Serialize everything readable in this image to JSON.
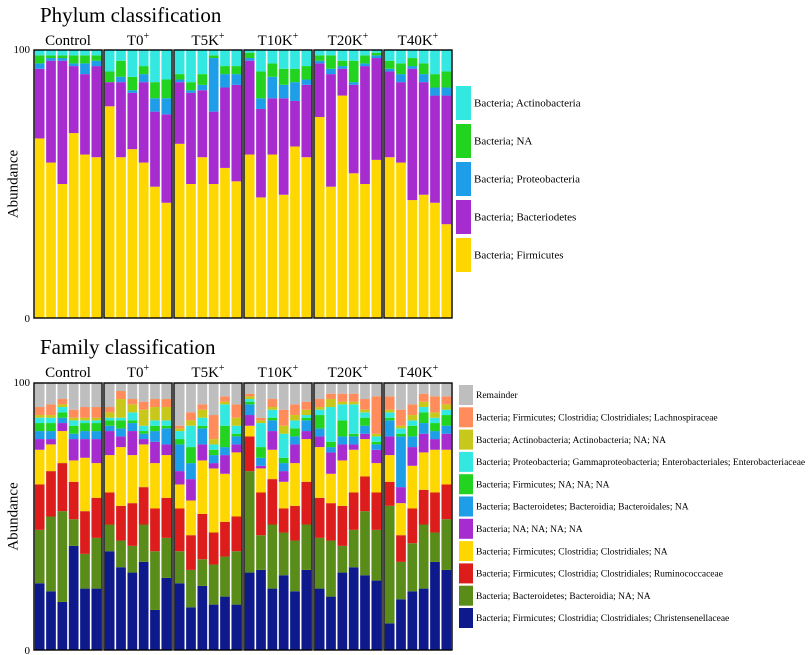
{
  "chart_data": [
    {
      "type": "bar",
      "stacked": true,
      "title": "Phylum classification",
      "ylabel": "Abundance",
      "ylim": [
        0,
        100
      ],
      "yticks": [
        "0",
        "100"
      ],
      "groups": [
        {
          "label": "Control",
          "label_main": "Control",
          "label_sup": ""
        },
        {
          "label": "T0+",
          "label_main": "T0",
          "label_sup": "+"
        },
        {
          "label": "T5K+",
          "label_main": "T5K",
          "label_sup": "+"
        },
        {
          "label": "T10K+",
          "label_main": "T10K",
          "label_sup": "+"
        },
        {
          "label": "T20K+",
          "label_main": "T20K",
          "label_sup": "+"
        },
        {
          "label": "T40K+",
          "label_main": "T40K",
          "label_sup": "+"
        }
      ],
      "bars_per_group": 6,
      "series": [
        {
          "name": "Bacteria; Firmicutes",
          "color": "#FFD700"
        },
        {
          "name": "Bacteria; Bacteriodetes",
          "color": "#A62CD0"
        },
        {
          "name": "Bacteria; Proteobacteria",
          "color": "#1E9EE8"
        },
        {
          "name": "Bacteria; NA",
          "color": "#22D320"
        },
        {
          "name": "Bacteria; Actinobacteria",
          "color": "#33E8E0"
        }
      ],
      "legend_order": [
        "Bacteria; Actinobacteria",
        "Bacteria; NA",
        "Bacteria; Proteobacteria",
        "Bacteria; Bacteriodetes",
        "Bacteria; Firmicutes"
      ],
      "samples": [
        [
          67,
          26,
          2,
          3,
          2
        ],
        [
          58,
          38,
          1,
          1,
          2
        ],
        [
          50,
          46,
          1,
          1,
          2
        ],
        [
          69,
          25,
          1,
          3,
          2
        ],
        [
          61,
          30,
          4,
          3,
          2
        ],
        [
          60,
          34,
          2,
          2,
          2
        ],
        [
          79,
          9,
          0,
          4,
          8
        ],
        [
          60,
          28,
          2,
          6,
          4
        ],
        [
          63,
          21,
          1,
          5,
          10
        ],
        [
          58,
          30,
          3,
          3,
          6
        ],
        [
          49,
          28,
          5,
          6,
          12
        ],
        [
          43,
          33,
          6,
          7,
          11
        ],
        [
          65,
          23,
          1,
          2,
          9
        ],
        [
          50,
          34,
          1,
          3,
          12
        ],
        [
          60,
          25,
          2,
          4,
          9
        ],
        [
          50,
          27,
          20,
          1,
          2
        ],
        [
          56,
          30,
          5,
          3,
          6
        ],
        [
          51,
          36,
          4,
          3,
          6
        ],
        [
          61,
          35,
          1,
          2,
          1
        ],
        [
          45,
          33,
          4,
          10,
          8
        ],
        [
          61,
          21,
          8,
          5,
          5
        ],
        [
          46,
          36,
          5,
          6,
          7
        ],
        [
          64,
          17,
          7,
          5,
          7
        ],
        [
          60,
          27,
          2,
          5,
          6
        ],
        [
          75,
          20,
          1,
          2,
          2
        ],
        [
          49,
          42,
          2,
          5,
          2
        ],
        [
          83,
          10,
          1,
          2,
          4
        ],
        [
          54,
          33,
          1,
          8,
          4
        ],
        [
          50,
          44,
          1,
          3,
          2
        ],
        [
          59,
          38,
          1,
          1,
          1
        ],
        [
          60,
          32,
          1,
          3,
          4
        ],
        [
          58,
          30,
          3,
          4,
          5
        ],
        [
          44,
          49,
          1,
          3,
          3
        ],
        [
          46,
          42,
          3,
          4,
          5
        ],
        [
          43,
          40,
          3,
          5,
          9
        ],
        [
          35,
          48,
          3,
          6,
          8
        ]
      ]
    },
    {
      "type": "bar",
      "stacked": true,
      "title": "Family classification",
      "ylabel": "Abundance",
      "ylim": [
        0,
        100
      ],
      "yticks": [
        "0",
        "100"
      ],
      "groups": [
        {
          "label": "Control",
          "label_main": "Control",
          "label_sup": ""
        },
        {
          "label": "T0+",
          "label_main": "T0",
          "label_sup": "+"
        },
        {
          "label": "T5K+",
          "label_main": "T5K",
          "label_sup": "+"
        },
        {
          "label": "T10K+",
          "label_main": "T10K",
          "label_sup": "+"
        },
        {
          "label": "T20K+",
          "label_main": "T20K",
          "label_sup": "+"
        },
        {
          "label": "T40K+",
          "label_main": "T40K",
          "label_sup": "+"
        }
      ],
      "bars_per_group": 6,
      "series": [
        {
          "name": "Bacteria; Firmicutes; Clostridia; Clostridiales; Christensenellaceae",
          "color": "#0E1A8C"
        },
        {
          "name": "Bacteria; Bacteroidetes; Bacteroidia; NA; NA",
          "color": "#5A8C1A"
        },
        {
          "name": "Bacteria; Firmicutes; Clostridia; Clostridiales; Ruminococcaceae",
          "color": "#DD1C1C"
        },
        {
          "name": "Bacteria; Firmicutes; Clostridia; Clostridiales; NA",
          "color": "#FFD700"
        },
        {
          "name": "Bacteria; NA; NA; NA; NA",
          "color": "#A62CD0"
        },
        {
          "name": "Bacteria; Bacteroidetes; Bacteroidia; Bacteroidales; NA",
          "color": "#1E9EE8"
        },
        {
          "name": "Bacteria; Firmicutes; NA; NA; NA",
          "color": "#22D320"
        },
        {
          "name": "Bacteria; Proteobacteria; Gammaproteobacteria; Enterobacteriales; Enterobacteriaceae",
          "color": "#33E8E0"
        },
        {
          "name": "Bacteria; Actinobacteria; Actinobacteria; NA; NA",
          "color": "#C8C81A"
        },
        {
          "name": "Bacteria; Firmicutes; Clostridia; Clostridiales; Lachnospiraceae",
          "color": "#FF8C5A"
        },
        {
          "name": "Remainder",
          "color": "#BEBEBE"
        }
      ],
      "legend_order": [
        "Remainder",
        "Bacteria; Firmicutes; Clostridia; Clostridiales; Lachnospiraceae",
        "Bacteria; Actinobacteria; Actinobacteria; NA; NA",
        "Bacteria; Proteobacteria; Gammaproteobacteria; Enterobacteriales; Enterobacteriaceae",
        "Bacteria; Firmicutes; NA; NA; NA",
        "Bacteria; Bacteroidetes; Bacteroidia; Bacteroidales; NA",
        "Bacteria; NA; NA; NA; NA",
        "Bacteria; Firmicutes; Clostridia; Clostridiales; NA",
        "Bacteria; Firmicutes; Clostridia; Clostridiales; Ruminococcaceae",
        "Bacteria; Bacteroidetes; Bacteroidia; NA; NA",
        "Bacteria; Firmicutes; Clostridia; Clostridiales; Christensenellaceae"
      ],
      "samples": [
        [
          25,
          20,
          17,
          13,
          4,
          3,
          3,
          2,
          1,
          3,
          9
        ],
        [
          22,
          28,
          17,
          10,
          2,
          3,
          3,
          2,
          1,
          4,
          8
        ],
        [
          18,
          34,
          18,
          12,
          3,
          2,
          2,
          2,
          1,
          2,
          6
        ],
        [
          39,
          10,
          14,
          8,
          8,
          2,
          3,
          2,
          1,
          3,
          10
        ],
        [
          23,
          13,
          16,
          20,
          7,
          3,
          3,
          1,
          1,
          4,
          9
        ],
        [
          23,
          19,
          15,
          13,
          9,
          3,
          3,
          1,
          1,
          4,
          9
        ],
        [
          37,
          10,
          12,
          14,
          9,
          2,
          2,
          1,
          2,
          2,
          9
        ],
        [
          31,
          10,
          13,
          22,
          4,
          3,
          3,
          1,
          7,
          3,
          3
        ],
        [
          29,
          10,
          16,
          18,
          9,
          3,
          1,
          3,
          3,
          2,
          6
        ],
        [
          33,
          14,
          14,
          16,
          2,
          2,
          1,
          2,
          6,
          3,
          7
        ],
        [
          15,
          22,
          16,
          17,
          8,
          4,
          2,
          2,
          5,
          3,
          6
        ],
        [
          27,
          15,
          15,
          16,
          4,
          6,
          1,
          2,
          5,
          3,
          6
        ],
        [
          25,
          12,
          16,
          9,
          5,
          10,
          2,
          3,
          1,
          1,
          16
        ],
        [
          16,
          14,
          13,
          13,
          8,
          6,
          6,
          8,
          2,
          3,
          11
        ],
        [
          24,
          10,
          17,
          20,
          6,
          6,
          1,
          3,
          3,
          2,
          8
        ],
        [
          17,
          15,
          12,
          24,
          2,
          3,
          2,
          2,
          2,
          9,
          12
        ],
        [
          20,
          15,
          13,
          18,
          7,
          3,
          8,
          8,
          1,
          2,
          5
        ],
        [
          17,
          20,
          13,
          24,
          3,
          3,
          1,
          3,
          3,
          5,
          8
        ],
        [
          29,
          38,
          13,
          4,
          4,
          4,
          1,
          1,
          1,
          1,
          4
        ],
        [
          30,
          13,
          16,
          9,
          1,
          3,
          4,
          9,
          1,
          1,
          13
        ],
        [
          23,
          24,
          17,
          11,
          7,
          4,
          1,
          3,
          1,
          3,
          6
        ],
        [
          28,
          16,
          9,
          10,
          4,
          3,
          2,
          9,
          3,
          6,
          10
        ],
        [
          22,
          19,
          13,
          16,
          7,
          3,
          3,
          3,
          2,
          4,
          8
        ],
        [
          30,
          17,
          16,
          16,
          3,
          4,
          1,
          1,
          2,
          3,
          7
        ],
        [
          23,
          19,
          15,
          19,
          4,
          3,
          5,
          2,
          1,
          3,
          6
        ],
        [
          20,
          21,
          14,
          11,
          8,
          2,
          2,
          13,
          3,
          2,
          4
        ],
        [
          29,
          10,
          15,
          17,
          6,
          3,
          6,
          6,
          1,
          3,
          4
        ],
        [
          31,
          14,
          14,
          16,
          2,
          3,
          1,
          11,
          1,
          3,
          4
        ],
        [
          28,
          24,
          13,
          14,
          2,
          3,
          3,
          2,
          1,
          4,
          6
        ],
        [
          26,
          19,
          14,
          11,
          5,
          2,
          1,
          2,
          1,
          14,
          5
        ],
        [
          10,
          44,
          9,
          10,
          7,
          6,
          1,
          2,
          1,
          5,
          5
        ],
        [
          19,
          14,
          10,
          12,
          6,
          19,
          1,
          2,
          1,
          6,
          10
        ],
        [
          22,
          18,
          13,
          16,
          7,
          4,
          4,
          2,
          2,
          4,
          8
        ],
        [
          23,
          24,
          13,
          14,
          7,
          4,
          4,
          2,
          2,
          3,
          4
        ],
        [
          33,
          11,
          15,
          16,
          4,
          3,
          3,
          2,
          2,
          6,
          5
        ],
        [
          30,
          19,
          13,
          13,
          6,
          3,
          4,
          2,
          2,
          3,
          5
        ]
      ]
    }
  ]
}
